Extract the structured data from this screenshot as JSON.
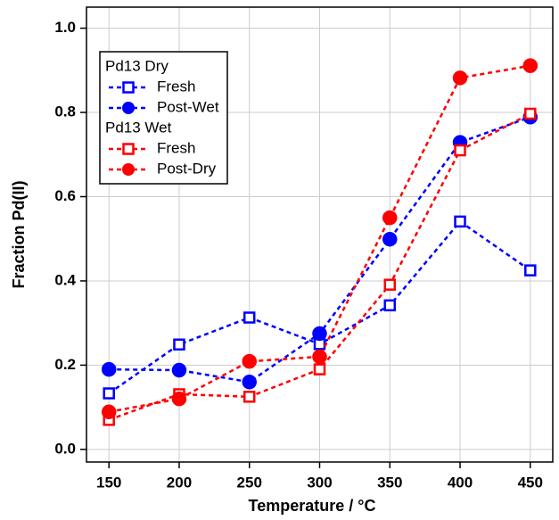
{
  "chart_data": {
    "type": "line",
    "x_label": "Temperature / °C",
    "y_label": "Fraction Pd(II)",
    "x": [
      150,
      200,
      250,
      300,
      350,
      400,
      450
    ],
    "legend_titles": [
      "Pd13 Dry",
      "Pd13 Wet"
    ],
    "series": [
      {
        "name": "Fresh",
        "color": "#0000ff",
        "marker": "square",
        "values": [
          0.133,
          0.249,
          0.313,
          0.25,
          0.342,
          0.541,
          0.425
        ]
      },
      {
        "name": "Post-Wet",
        "color": "#0000ff",
        "marker": "circle",
        "values": [
          0.19,
          0.188,
          0.16,
          0.275,
          0.499,
          0.729,
          0.789
        ]
      },
      {
        "name": "Fresh",
        "color": "#ff0000",
        "marker": "square",
        "values": [
          0.07,
          0.131,
          0.125,
          0.19,
          0.391,
          0.71,
          0.797
        ]
      },
      {
        "name": "Post-Dry",
        "color": "#ff0000",
        "marker": "circle",
        "values": [
          0.089,
          0.12,
          0.209,
          0.22,
          0.55,
          0.882,
          0.911
        ]
      }
    ],
    "xlim": [
      134,
      466
    ],
    "ylim": [
      -0.03,
      1.05
    ],
    "xticks": [
      150,
      200,
      250,
      300,
      350,
      400,
      450
    ],
    "yticks": [
      {
        "value": 0,
        "label": "0.0"
      },
      0.2,
      0.4,
      0.6,
      0.8,
      {
        "value": 1,
        "label": "1.0"
      }
    ],
    "grid": true
  }
}
